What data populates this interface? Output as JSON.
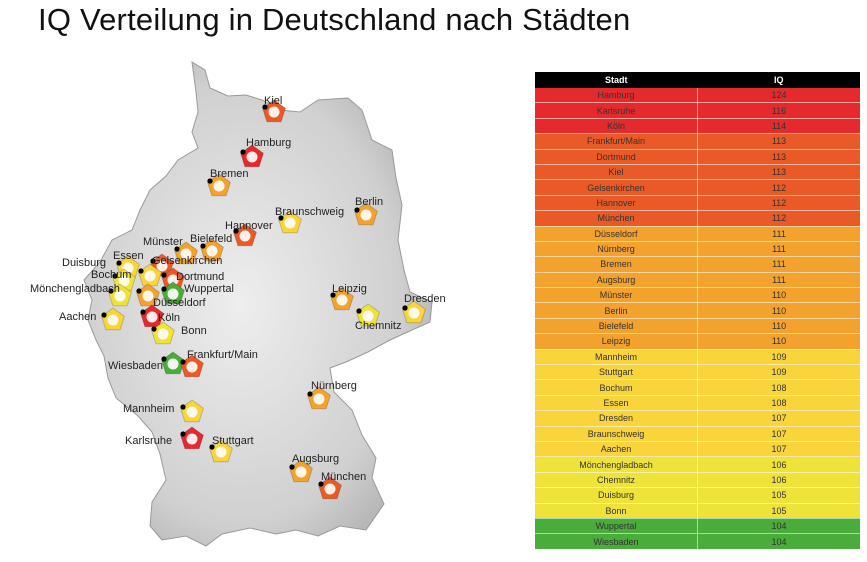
{
  "title": "IQ Verteilung in Deutschland nach Städten",
  "table": {
    "headers": {
      "city": "Stadt",
      "iq": "IQ"
    },
    "rows": [
      {
        "city": "Hamburg",
        "iq": "124",
        "color": "#e42a2d"
      },
      {
        "city": "Karlsruhe",
        "iq": "116",
        "color": "#e42a2d"
      },
      {
        "city": "Köln",
        "iq": "114",
        "color": "#e42a2d"
      },
      {
        "city": "Frankfurt/Main",
        "iq": "113",
        "color": "#ea5a26"
      },
      {
        "city": "Dortmund",
        "iq": "113",
        "color": "#ea5a26"
      },
      {
        "city": "Kiel",
        "iq": "113",
        "color": "#ea5a26"
      },
      {
        "city": "Gelsenkirchen",
        "iq": "112",
        "color": "#ea5a26"
      },
      {
        "city": "Hannover",
        "iq": "112",
        "color": "#ea5a26"
      },
      {
        "city": "München",
        "iq": "112",
        "color": "#ea5a26"
      },
      {
        "city": "Düsseldorf",
        "iq": "111",
        "color": "#f4a22e"
      },
      {
        "city": "Nürnberg",
        "iq": "111",
        "color": "#f4a22e"
      },
      {
        "city": "Bremen",
        "iq": "111",
        "color": "#f4a22e"
      },
      {
        "city": "Augsburg",
        "iq": "111",
        "color": "#f4a22e"
      },
      {
        "city": "Münster",
        "iq": "110",
        "color": "#f4a22e"
      },
      {
        "city": "Berlin",
        "iq": "110",
        "color": "#f4a22e"
      },
      {
        "city": "Bielefeld",
        "iq": "110",
        "color": "#f4a22e"
      },
      {
        "city": "Leipzig",
        "iq": "110",
        "color": "#f4a22e"
      },
      {
        "city": "Mannheim",
        "iq": "109",
        "color": "#f9d43a"
      },
      {
        "city": "Stuttgart",
        "iq": "109",
        "color": "#f9d43a"
      },
      {
        "city": "Bochum",
        "iq": "108",
        "color": "#f9d43a"
      },
      {
        "city": "Essen",
        "iq": "108",
        "color": "#f9d43a"
      },
      {
        "city": "Dresden",
        "iq": "107",
        "color": "#f9d43a"
      },
      {
        "city": "Braunschweig",
        "iq": "107",
        "color": "#f9d43a"
      },
      {
        "city": "Aachen",
        "iq": "107",
        "color": "#f9d43a"
      },
      {
        "city": "Mönchengladbach",
        "iq": "106",
        "color": "#efe33a"
      },
      {
        "city": "Chemnitz",
        "iq": "106",
        "color": "#efe33a"
      },
      {
        "city": "Duisburg",
        "iq": "105",
        "color": "#efe33a"
      },
      {
        "city": "Bonn",
        "iq": "105",
        "color": "#efe33a"
      },
      {
        "city": "Wuppertal",
        "iq": "104",
        "color": "#4aac3a"
      },
      {
        "city": "Wiesbaden",
        "iq": "104",
        "color": "#4aac3a"
      }
    ]
  },
  "map": {
    "base_color": "#c9c9c9",
    "markers": [
      {
        "name": "Kiel",
        "color": "#ea5a26"
      },
      {
        "name": "Hamburg",
        "color": "#e42a2d"
      },
      {
        "name": "Bremen",
        "color": "#f4a22e"
      },
      {
        "name": "Berlin",
        "color": "#f4a22e"
      },
      {
        "name": "Braunschweig",
        "color": "#f9d43a"
      },
      {
        "name": "Hannover",
        "color": "#ea5a26"
      },
      {
        "name": "Münster",
        "color": "#f4a22e"
      },
      {
        "name": "Bielefeld",
        "color": "#f4a22e"
      },
      {
        "name": "Essen",
        "color": "#f9d43a"
      },
      {
        "name": "Gelsenkirchen",
        "color": "#ea5a26"
      },
      {
        "name": "Duisburg",
        "color": "#efe33a"
      },
      {
        "name": "Bochum",
        "color": "#f9d43a"
      },
      {
        "name": "Dortmund",
        "color": "#ea5a26"
      },
      {
        "name": "Mönchengladbach",
        "color": "#efe33a"
      },
      {
        "name": "Wuppertal",
        "color": "#4aac3a"
      },
      {
        "name": "Düsseldorf",
        "color": "#f4a22e"
      },
      {
        "name": "Köln",
        "color": "#e42a2d"
      },
      {
        "name": "Aachen",
        "color": "#f9d43a"
      },
      {
        "name": "Bonn",
        "color": "#efe33a"
      },
      {
        "name": "Leipzig",
        "color": "#f4a22e"
      },
      {
        "name": "Dresden",
        "color": "#f9d43a"
      },
      {
        "name": "Chemnitz",
        "color": "#efe33a"
      },
      {
        "name": "Wiesbaden",
        "color": "#4aac3a"
      },
      {
        "name": "Frankfurt/Main",
        "color": "#ea5a26"
      },
      {
        "name": "Nürnberg",
        "color": "#f4a22e"
      },
      {
        "name": "Mannheim",
        "color": "#f9d43a"
      },
      {
        "name": "Karlsruhe",
        "color": "#e42a2d"
      },
      {
        "name": "Stuttgart",
        "color": "#f9d43a"
      },
      {
        "name": "Augsburg",
        "color": "#f4a22e"
      },
      {
        "name": "München",
        "color": "#ea5a26"
      }
    ]
  }
}
